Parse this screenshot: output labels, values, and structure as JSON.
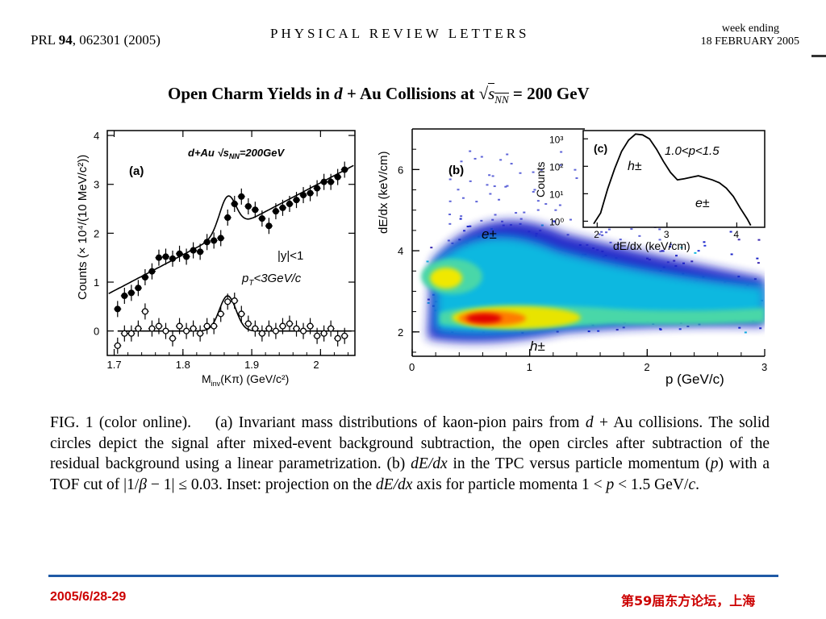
{
  "header": {
    "journal_ref_prefix": "PRL ",
    "journal_volume": "94",
    "journal_ref_suffix": ", 062301 (2005)",
    "journal_name": "PHYSICAL REVIEW LETTERS",
    "week_ending": "week ending",
    "issue_date": "18 FEBRUARY 2005"
  },
  "title": {
    "part1": "Open Charm Yields in ",
    "d": "d",
    "part2": " + Au Collisions at ",
    "sqrt_s": "s",
    "sub_nn": "NN",
    "part3": " = 200 GeV"
  },
  "panel_a": {
    "label": "(a)",
    "system_label": "d+Au  √s",
    "system_sub": "NN",
    "system_energy": "=200GeV",
    "cut_y": "|y|<1",
    "cut_pt": "p",
    "cut_pt_sub": "T",
    "cut_pt_val": "<3GeV/c",
    "ylabel": "Counts (× 10⁴/(10 MeV/c²))",
    "xlabel": "M",
    "xlabel_sub": "inv",
    "xlabel_rest": "(Kπ) (GeV/c²)"
  },
  "panel_b": {
    "label": "(b)",
    "ylabel": "dE/dx (keV/cm)",
    "xlabel": "p (GeV/c)",
    "e_label": "e±",
    "h_label": "h±"
  },
  "panel_c": {
    "label": "(c)",
    "range": "1.0<p<1.5",
    "ylabel": "Counts",
    "xlabel": "dE/dx (keV/cm)",
    "h_label": "h±",
    "e_label": "e±"
  },
  "chart_data": [
    {
      "type": "scatter",
      "panel": "a",
      "xlabel": "Minv(Kπ) (GeV/c²)",
      "ylabel": "Counts (× 10⁴/(10 MeV/c²))",
      "xlim": [
        1.69,
        2.05
      ],
      "ylim": [
        -0.5,
        4.1
      ],
      "xticks": [
        1.7,
        1.8,
        1.9,
        2.0
      ],
      "xtick_labels": [
        "1.7",
        "1.8",
        "1.9",
        "2"
      ],
      "yticks": [
        0,
        1,
        2,
        3,
        4
      ],
      "series": [
        {
          "marker": "filled-circle",
          "x": [
            1.705,
            1.715,
            1.725,
            1.735,
            1.745,
            1.755,
            1.765,
            1.775,
            1.785,
            1.795,
            1.805,
            1.815,
            1.825,
            1.835,
            1.845,
            1.855,
            1.865,
            1.875,
            1.885,
            1.895,
            1.905,
            1.915,
            1.925,
            1.935,
            1.945,
            1.955,
            1.965,
            1.975,
            1.985,
            1.995,
            2.005,
            2.015,
            2.025,
            2.035
          ],
          "y": [
            0.45,
            0.72,
            0.78,
            0.88,
            1.1,
            1.22,
            1.5,
            1.52,
            1.48,
            1.58,
            1.52,
            1.65,
            1.62,
            1.82,
            1.85,
            1.9,
            2.32,
            2.6,
            2.75,
            2.55,
            2.48,
            2.3,
            2.15,
            2.45,
            2.52,
            2.6,
            2.68,
            2.78,
            2.82,
            2.92,
            3.05,
            3.05,
            3.15,
            3.3
          ]
        },
        {
          "marker": "open-circle",
          "x": [
            1.705,
            1.715,
            1.725,
            1.735,
            1.745,
            1.755,
            1.765,
            1.775,
            1.785,
            1.795,
            1.805,
            1.815,
            1.825,
            1.835,
            1.845,
            1.855,
            1.865,
            1.875,
            1.885,
            1.895,
            1.905,
            1.915,
            1.925,
            1.935,
            1.945,
            1.955,
            1.965,
            1.975,
            1.985,
            1.995,
            2.005,
            2.015,
            2.025,
            2.035
          ],
          "y": [
            -0.3,
            -0.05,
            -0.05,
            0.05,
            0.4,
            0.05,
            0.1,
            0.0,
            -0.15,
            0.1,
            0.0,
            0.05,
            -0.05,
            0.1,
            0.1,
            0.35,
            0.6,
            0.62,
            0.35,
            0.15,
            0.05,
            -0.05,
            0.05,
            0.0,
            0.1,
            0.15,
            0.05,
            0.0,
            0.1,
            -0.1,
            -0.05,
            0.05,
            -0.15,
            -0.1
          ]
        }
      ],
      "fit_line": {
        "x": [
          1.69,
          2.05
        ],
        "y": [
          0.75,
          3.4
        ]
      },
      "peak_fit": {
        "center": 1.865,
        "sigma": 0.012
      }
    },
    {
      "type": "heatmap",
      "panel": "b",
      "xlabel": "p (GeV/c)",
      "ylabel": "dE/dx (keV/cm)",
      "xlim": [
        0,
        3
      ],
      "ylim": [
        1.4,
        7.0
      ],
      "xticks": [
        0,
        1,
        2,
        3
      ],
      "yticks": [
        2,
        4,
        6
      ],
      "bands": [
        {
          "name": "h±",
          "peak_x": 0.65,
          "peak_y": 2.55
        },
        {
          "name": "e±",
          "peak_x": 0.1,
          "peak_y": 3.4
        }
      ]
    },
    {
      "type": "line",
      "panel": "c",
      "xlabel": "dE/dx (keV/cm)",
      "ylabel": "Counts",
      "log_y": true,
      "xlim": [
        1.8,
        4.4
      ],
      "ylim": [
        0.6,
        2000
      ],
      "xticks": [
        2,
        3,
        4
      ],
      "yticks": [
        1,
        10,
        100,
        1000
      ],
      "ytick_labels": [
        "10⁰",
        "10¹",
        "10²",
        "10³"
      ],
      "x": [
        1.95,
        2.05,
        2.15,
        2.25,
        2.35,
        2.45,
        2.55,
        2.65,
        2.75,
        2.85,
        2.95,
        3.05,
        3.15,
        3.25,
        3.35,
        3.45,
        3.55,
        3.65,
        3.75,
        3.85,
        3.95,
        4.05,
        4.15,
        4.2
      ],
      "y": [
        0.8,
        2,
        15,
        80,
        350,
        900,
        1500,
        1400,
        1000,
        420,
        150,
        60,
        32,
        35,
        40,
        45,
        38,
        32,
        25,
        16,
        8,
        3,
        1.2,
        0.7
      ]
    }
  ],
  "caption": {
    "fig": "FIG. 1 (color online).",
    "t1": "(a) Invariant mass distributions of kaon-pion pairs from ",
    "d": "d",
    "t2": " + Au collisions. The solid circles depict the signal after mixed-event background subtraction, the open circles after subtraction of the residual background using a linear parametrization. (b) ",
    "dedx1": "dE/dx",
    "t3": " in the TPC versus particle momentum (",
    "p1": "p",
    "t4": ") with a TOF cut of |1/",
    "beta": "β",
    "t5": " − 1| ≤ 0.03. Inset: projection on the ",
    "dedx2": "dE/dx",
    "t6": " axis for particle momenta 1 < ",
    "p2": "p",
    "t7": " < 1.5 GeV/",
    "c": "c",
    "t8": "."
  },
  "footer": {
    "date": "2005/6/28-29",
    "venue": "第59届东方论坛，上海",
    "rule_color": "#1f5aa6",
    "text_color": "#cc0000"
  }
}
